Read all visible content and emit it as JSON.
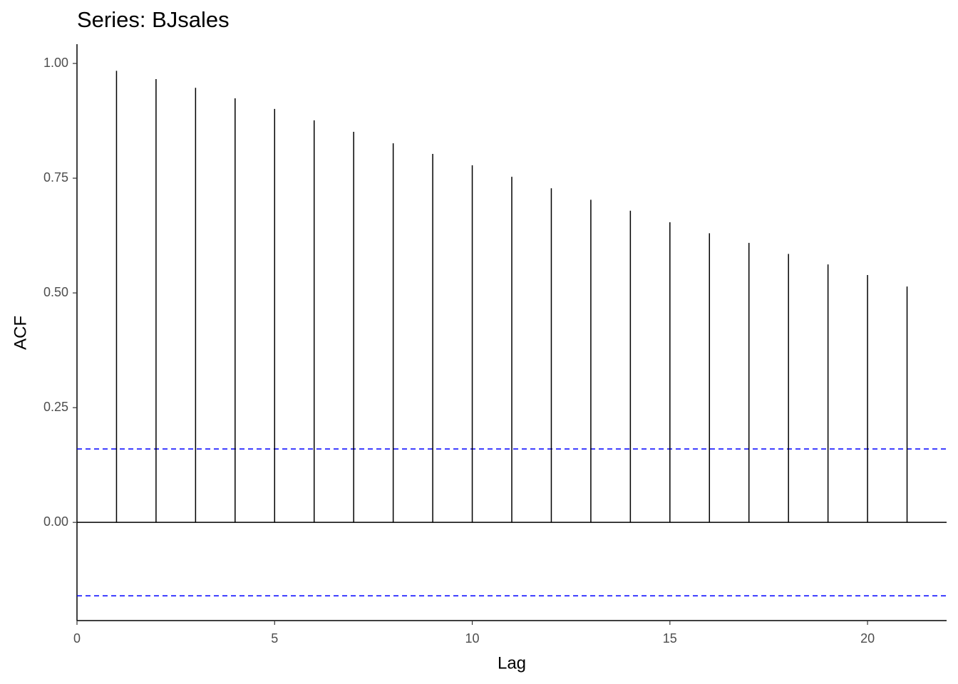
{
  "chart_data": {
    "type": "stem",
    "title": "Series: BJsales",
    "x_label": "Lag",
    "y_label": "ACF",
    "x": [
      1,
      2,
      3,
      4,
      5,
      6,
      7,
      8,
      9,
      10,
      11,
      12,
      13,
      14,
      15,
      16,
      17,
      18,
      19,
      20,
      21
    ],
    "values": [
      0.984,
      0.966,
      0.947,
      0.924,
      0.901,
      0.876,
      0.851,
      0.826,
      0.803,
      0.778,
      0.753,
      0.728,
      0.703,
      0.679,
      0.654,
      0.63,
      0.609,
      0.585,
      0.562,
      0.539,
      0.514
    ],
    "color": "#000000",
    "confidence_bounds": [
      0.16,
      -0.16
    ],
    "confidence_color": "#0000ff",
    "xlim": [
      0,
      22
    ],
    "xticks": [
      0,
      5,
      10,
      15,
      20
    ],
    "ylim": [
      -0.214,
      1.042
    ],
    "yticks": [
      {
        "value": 0,
        "label": "0.00"
      },
      {
        "value": 0.25,
        "label": "0.25"
      },
      {
        "value": 0.5,
        "label": "0.50"
      },
      {
        "value": 0.75,
        "label": "0.75"
      },
      {
        "value": 1,
        "label": "1.00"
      }
    ],
    "grid": false
  }
}
